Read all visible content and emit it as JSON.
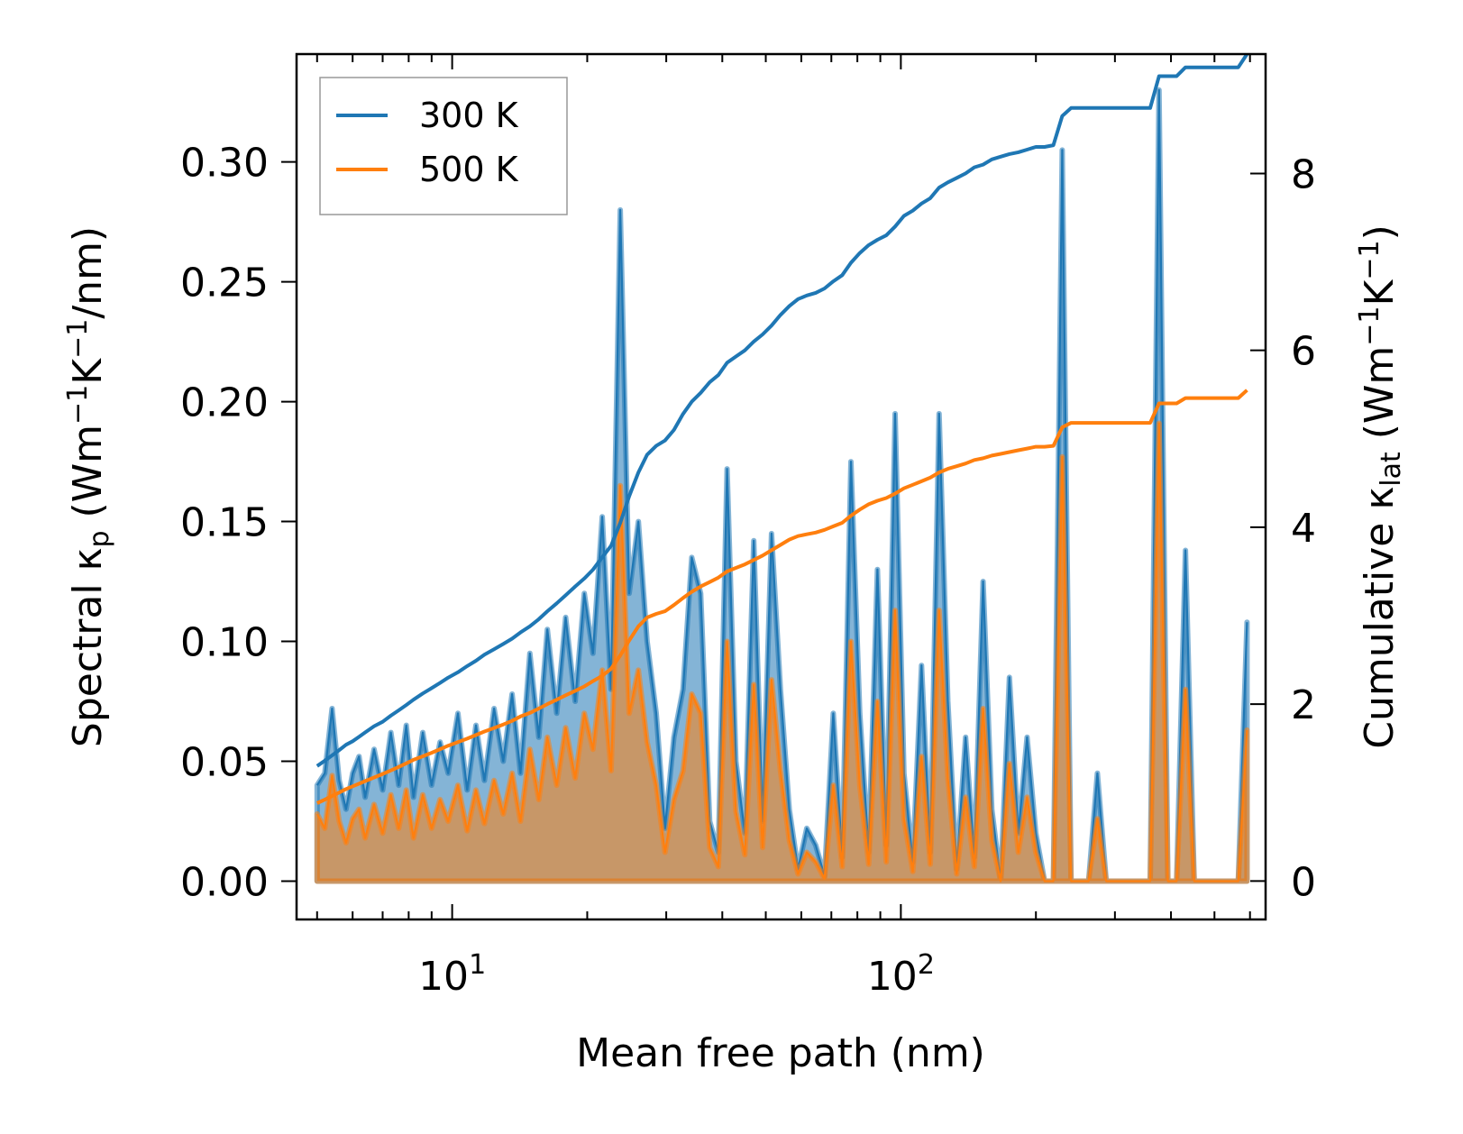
{
  "chart_data": {
    "type": "line",
    "xscale": "log",
    "xlabel": "Mean free path (nm)",
    "ylabel_left": {
      "base": "Spectral κ",
      "sub": "p",
      "unit_open": " (Wm",
      "sup1": "−1",
      "mid": "K",
      "sup2": "−1",
      "unit_close": "/nm)"
    },
    "ylabel_right": {
      "base": "Cumulative κ",
      "sub": "lat",
      "unit_open": " (Wm",
      "sup1": "−1",
      "mid": "K",
      "sup2": "−1",
      "unit_close": ")"
    },
    "xlim": [
      4.5,
      650
    ],
    "ylim_left": [
      -0.016,
      0.345
    ],
    "ylim_right": [
      -0.435,
      9.35
    ],
    "yticks_left": [
      "0.00",
      "0.05",
      "0.10",
      "0.15",
      "0.20",
      "0.25",
      "0.30"
    ],
    "yticks_right": [
      "0",
      "2",
      "4",
      "6",
      "8"
    ],
    "xticks": [
      {
        "base": "10",
        "exp": "1",
        "value": 10
      },
      {
        "base": "10",
        "exp": "2",
        "value": 100
      }
    ],
    "legend": [
      {
        "label": "300 K",
        "color": "#1f77b4"
      },
      {
        "label": "500 K",
        "color": "#ff7f0e"
      }
    ],
    "x": [
      5.0,
      5.2,
      5.4,
      5.6,
      5.8,
      6.0,
      6.2,
      6.4,
      6.7,
      7.0,
      7.3,
      7.6,
      7.9,
      8.2,
      8.6,
      9.0,
      9.4,
      9.8,
      10.3,
      10.8,
      11.3,
      11.8,
      12.4,
      13.0,
      13.6,
      14.2,
      14.9,
      15.6,
      16.3,
      17.1,
      17.9,
      18.8,
      19.7,
      20.6,
      21.6,
      22.6,
      23.7,
      24.8,
      26.0,
      27.2,
      28.5,
      29.8,
      31.2,
      32.7,
      34.2,
      35.8,
      37.5,
      39.2,
      41.0,
      42.9,
      44.9,
      47.0,
      49.2,
      51.5,
      53.9,
      56.4,
      59.0,
      61.7,
      64.6,
      67.6,
      70.7,
      74.0,
      77.4,
      81.0,
      84.8,
      88.7,
      92.8,
      97.1,
      101.6,
      106.3,
      111.2,
      116.3,
      121.7,
      127.3,
      133.2,
      139.4,
      145.8,
      152.5,
      159.5,
      166.9,
      174.6,
      182.7,
      191.1,
      199.9,
      209.1,
      218.8,
      228.9,
      239.5,
      250.5,
      262.1,
      274.2,
      286.9,
      300.1,
      314.0,
      328.5,
      343.7,
      359.6,
      376.2,
      393.6,
      411.8,
      430.8,
      450.7,
      471.5,
      493.3,
      516.1,
      540.0,
      565.0,
      591.0
    ],
    "series": [
      {
        "name": "300 K",
        "color": "#1f77b4",
        "spectral": [
          0.04,
          0.045,
          0.072,
          0.042,
          0.03,
          0.045,
          0.052,
          0.035,
          0.055,
          0.038,
          0.062,
          0.04,
          0.065,
          0.035,
          0.062,
          0.04,
          0.058,
          0.045,
          0.07,
          0.038,
          0.065,
          0.042,
          0.072,
          0.05,
          0.078,
          0.045,
          0.095,
          0.06,
          0.105,
          0.07,
          0.11,
          0.075,
          0.12,
          0.095,
          0.152,
          0.08,
          0.28,
          0.12,
          0.15,
          0.1,
          0.07,
          0.022,
          0.06,
          0.08,
          0.135,
          0.12,
          0.025,
          0.012,
          0.172,
          0.05,
          0.02,
          0.142,
          0.025,
          0.145,
          0.08,
          0.03,
          0.005,
          0.022,
          0.015,
          0.002,
          0.07,
          0.01,
          0.175,
          0.07,
          0.012,
          0.13,
          0.015,
          0.195,
          0.045,
          0.008,
          0.09,
          0.012,
          0.195,
          0.075,
          0.005,
          0.06,
          0.01,
          0.125,
          0.03,
          0.0,
          0.085,
          0.02,
          0.06,
          0.02,
          0.0,
          0.0,
          0.305,
          0.0,
          0.0,
          0.0,
          0.045,
          0.0,
          0.0,
          0.0,
          0.0,
          0.0,
          0.0,
          0.33,
          0.0,
          0.0,
          0.138,
          0.0,
          0.0,
          0.0,
          0.0,
          0.0,
          0.0,
          0.108
        ],
        "cumulative": [
          1.3,
          1.36,
          1.42,
          1.48,
          1.54,
          1.58,
          1.63,
          1.68,
          1.75,
          1.8,
          1.87,
          1.93,
          1.99,
          2.05,
          2.12,
          2.18,
          2.24,
          2.3,
          2.36,
          2.43,
          2.49,
          2.56,
          2.62,
          2.68,
          2.74,
          2.81,
          2.88,
          2.96,
          3.05,
          3.14,
          3.23,
          3.33,
          3.42,
          3.52,
          3.66,
          3.79,
          4.05,
          4.35,
          4.62,
          4.82,
          4.92,
          4.98,
          5.1,
          5.28,
          5.42,
          5.52,
          5.64,
          5.72,
          5.86,
          5.93,
          6.0,
          6.1,
          6.18,
          6.28,
          6.4,
          6.5,
          6.58,
          6.62,
          6.65,
          6.7,
          6.78,
          6.85,
          6.99,
          7.1,
          7.19,
          7.25,
          7.3,
          7.4,
          7.52,
          7.58,
          7.66,
          7.72,
          7.84,
          7.9,
          7.95,
          8.0,
          8.07,
          8.1,
          8.16,
          8.19,
          8.22,
          8.24,
          8.27,
          8.3,
          8.3,
          8.32,
          8.65,
          8.74,
          8.74,
          8.74,
          8.74,
          8.74,
          8.74,
          8.74,
          8.74,
          8.74,
          8.74,
          9.1,
          9.1,
          9.1,
          9.2,
          9.2,
          9.2,
          9.2,
          9.2,
          9.2,
          9.2,
          9.35
        ]
      },
      {
        "name": "500 K",
        "color": "#ff7f0e",
        "spectral": [
          0.028,
          0.022,
          0.044,
          0.025,
          0.016,
          0.026,
          0.03,
          0.018,
          0.032,
          0.02,
          0.036,
          0.022,
          0.038,
          0.018,
          0.036,
          0.022,
          0.034,
          0.025,
          0.04,
          0.021,
          0.038,
          0.024,
          0.042,
          0.028,
          0.045,
          0.025,
          0.055,
          0.034,
          0.06,
          0.04,
          0.064,
          0.043,
          0.07,
          0.055,
          0.088,
          0.046,
          0.165,
          0.07,
          0.088,
          0.058,
          0.04,
          0.012,
          0.034,
          0.046,
          0.078,
          0.07,
          0.014,
          0.006,
          0.1,
          0.029,
          0.011,
          0.082,
          0.014,
          0.084,
          0.046,
          0.017,
          0.003,
          0.012,
          0.008,
          0.001,
          0.04,
          0.006,
          0.1,
          0.04,
          0.007,
          0.075,
          0.008,
          0.113,
          0.026,
          0.004,
          0.052,
          0.007,
          0.113,
          0.043,
          0.003,
          0.035,
          0.006,
          0.072,
          0.017,
          0.0,
          0.049,
          0.012,
          0.035,
          0.012,
          0.0,
          0.0,
          0.177,
          0.0,
          0.0,
          0.0,
          0.026,
          0.0,
          0.0,
          0.0,
          0.0,
          0.0,
          0.0,
          0.191,
          0.0,
          0.0,
          0.08,
          0.0,
          0.0,
          0.0,
          0.0,
          0.0,
          0.0,
          0.063
        ],
        "cumulative": [
          0.88,
          0.92,
          0.96,
          1.0,
          1.04,
          1.07,
          1.1,
          1.13,
          1.17,
          1.21,
          1.25,
          1.29,
          1.33,
          1.37,
          1.41,
          1.45,
          1.49,
          1.53,
          1.57,
          1.61,
          1.65,
          1.69,
          1.73,
          1.77,
          1.81,
          1.86,
          1.9,
          1.95,
          2.0,
          2.05,
          2.1,
          2.15,
          2.2,
          2.26,
          2.32,
          2.4,
          2.55,
          2.72,
          2.88,
          2.98,
          3.02,
          3.05,
          3.12,
          3.2,
          3.27,
          3.33,
          3.38,
          3.43,
          3.5,
          3.54,
          3.58,
          3.63,
          3.68,
          3.74,
          3.8,
          3.86,
          3.9,
          3.92,
          3.94,
          3.97,
          4.01,
          4.05,
          4.13,
          4.2,
          4.26,
          4.3,
          4.33,
          4.38,
          4.44,
          4.48,
          4.52,
          4.56,
          4.62,
          4.66,
          4.69,
          4.72,
          4.76,
          4.78,
          4.81,
          4.83,
          4.85,
          4.87,
          4.89,
          4.91,
          4.91,
          4.92,
          5.13,
          5.18,
          5.18,
          5.18,
          5.18,
          5.18,
          5.18,
          5.18,
          5.18,
          5.18,
          5.18,
          5.4,
          5.4,
          5.4,
          5.46,
          5.46,
          5.46,
          5.46,
          5.46,
          5.46,
          5.46,
          5.55
        ]
      }
    ]
  }
}
